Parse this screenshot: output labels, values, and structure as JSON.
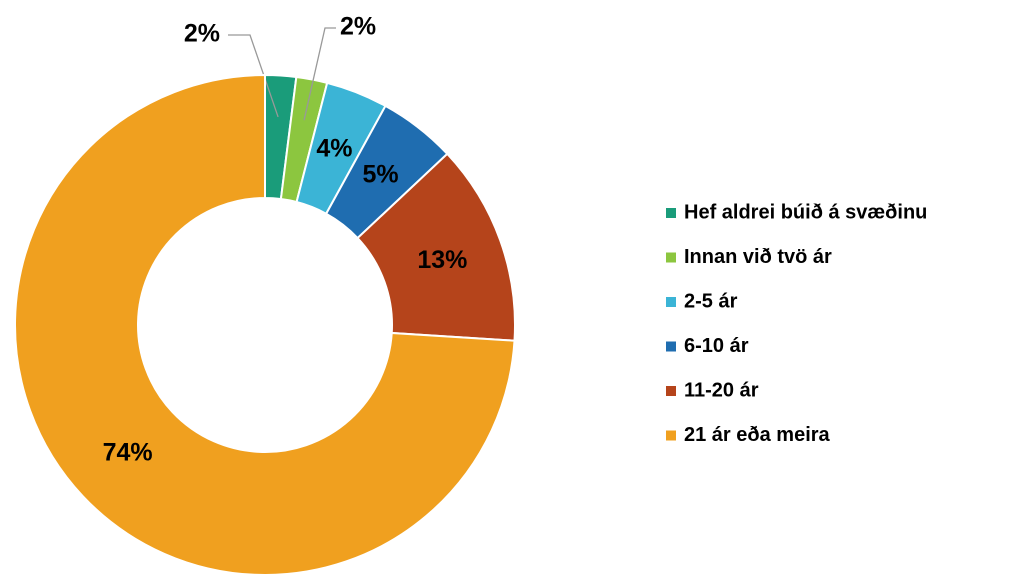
{
  "chart_data": {
    "type": "donut",
    "categories": [
      "Hef aldrei búið á svæðinu",
      "Innan við tvö ár",
      "2-5 ár",
      "6-10 ár",
      "11-20 ár",
      "21 ár eða meira"
    ],
    "values": [
      2,
      2,
      4,
      5,
      13,
      74
    ],
    "value_labels": [
      "2%",
      "2%",
      "4%",
      "5%",
      "13%",
      "74%"
    ],
    "colors": [
      "#1a9c7a",
      "#8cc63f",
      "#3bb4d6",
      "#1f6db0",
      "#b5441b",
      "#f0a01f"
    ],
    "legend": "right"
  }
}
